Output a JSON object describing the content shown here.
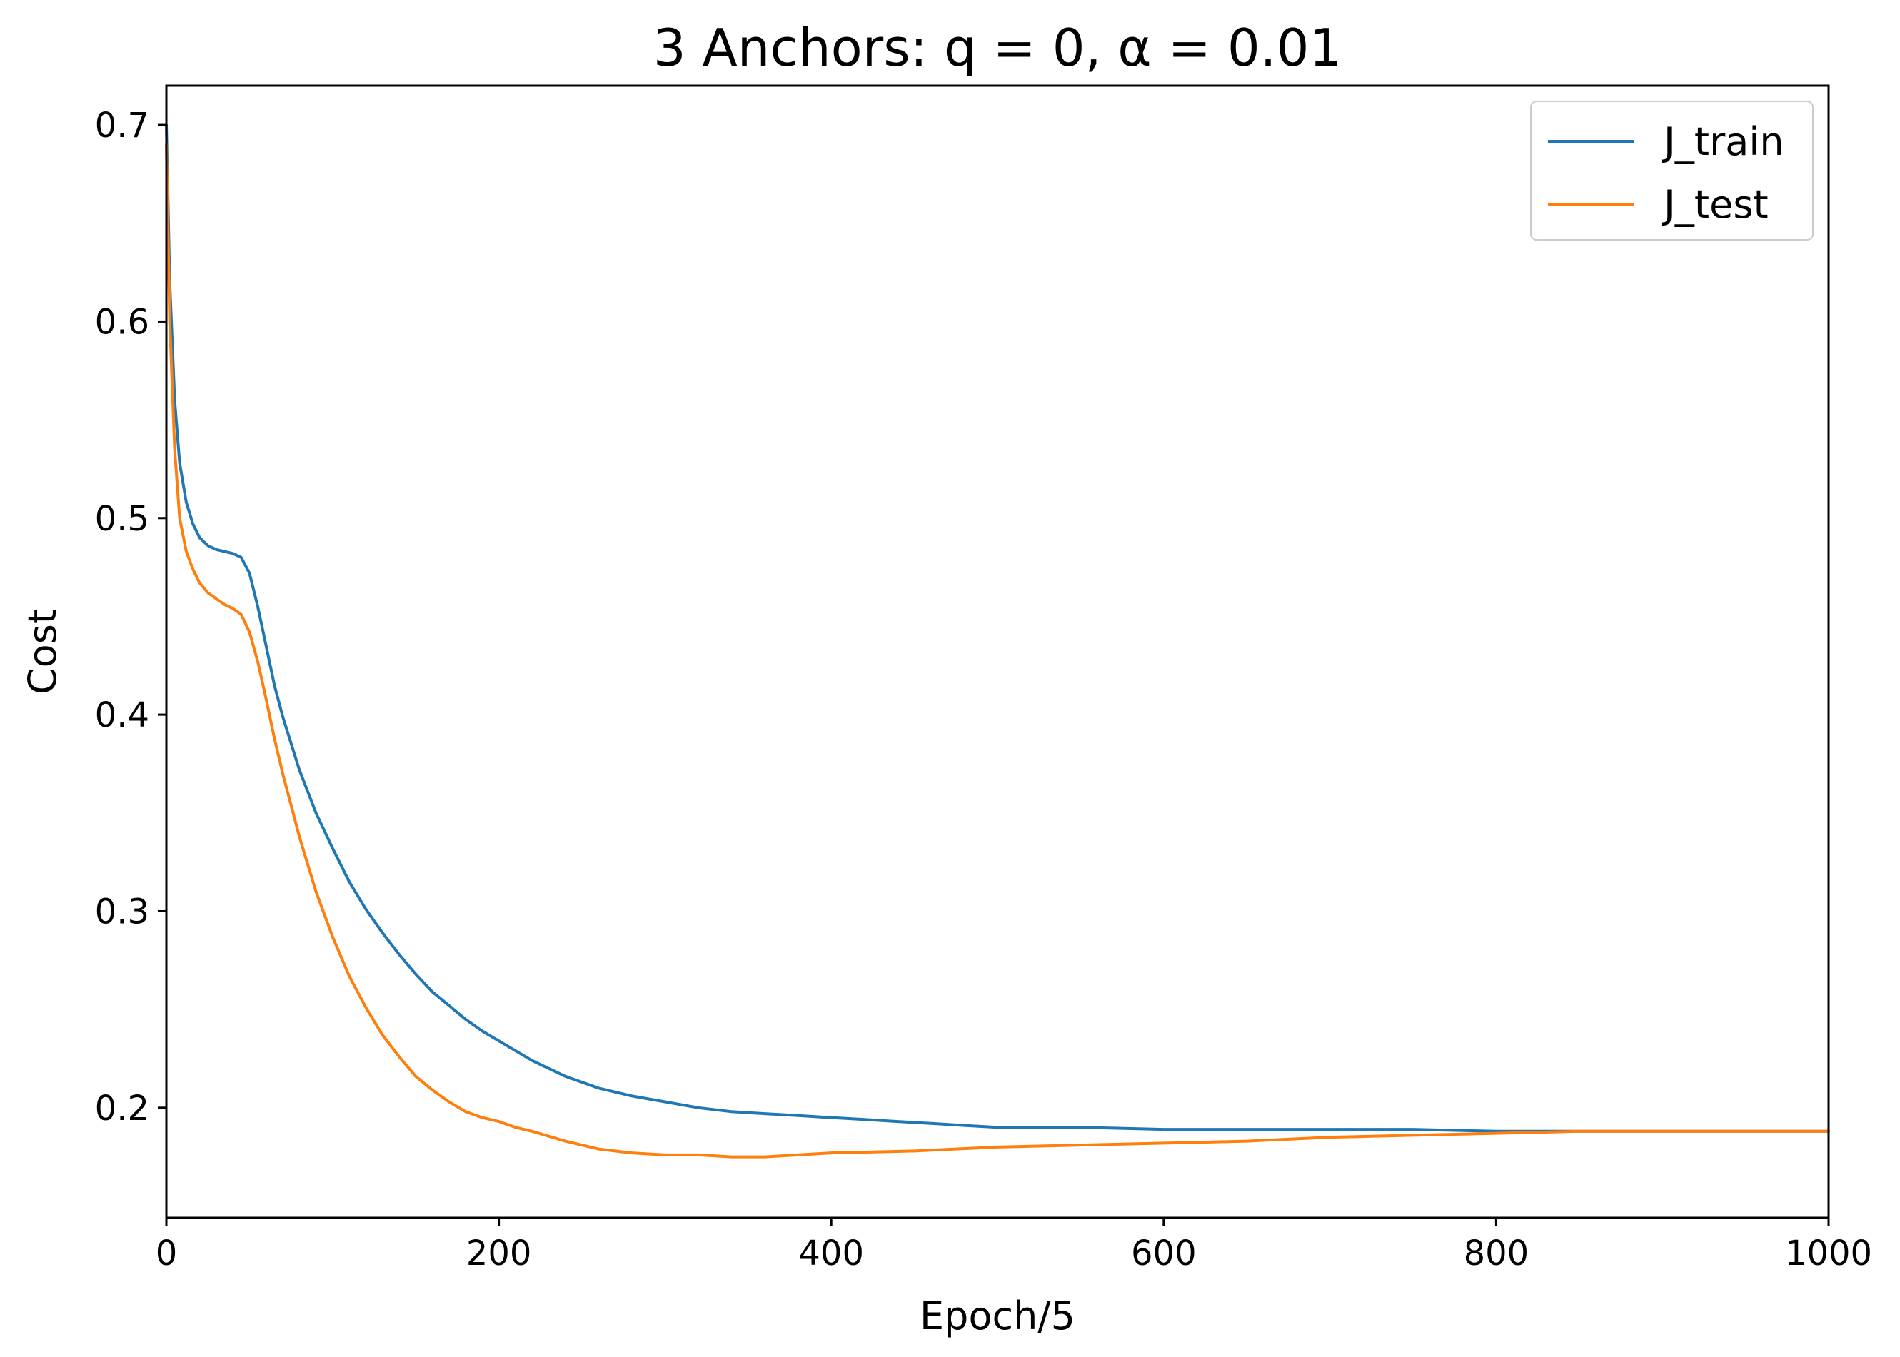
{
  "chart_data": {
    "type": "line",
    "title": "3 Anchors: q = 0, α = 0.01",
    "xlabel": "Epoch/5",
    "ylabel": "Cost",
    "xlim": [
      0,
      1000
    ],
    "ylim": [
      0.144,
      0.72
    ],
    "xticks": [
      0,
      200,
      400,
      600,
      800,
      1000
    ],
    "xtick_labels": [
      "0",
      "200",
      "400",
      "600",
      "800",
      "1000"
    ],
    "yticks": [
      0.2,
      0.3,
      0.4,
      0.5,
      0.6,
      0.7
    ],
    "ytick_labels": [
      "0.2",
      "0.3",
      "0.4",
      "0.5",
      "0.6",
      "0.7"
    ],
    "grid": false,
    "legend": {
      "placement": "upper right"
    },
    "series": [
      {
        "name": "J_train",
        "color": "#1f77b4",
        "x": [
          0,
          2,
          5,
          8,
          12,
          16,
          20,
          25,
          30,
          35,
          40,
          45,
          50,
          55,
          60,
          65,
          70,
          80,
          90,
          100,
          110,
          120,
          130,
          140,
          150,
          160,
          170,
          180,
          190,
          200,
          220,
          240,
          260,
          280,
          300,
          320,
          340,
          360,
          380,
          400,
          420,
          440,
          460,
          480,
          500,
          550,
          600,
          650,
          700,
          750,
          800,
          850,
          900,
          950,
          1000
        ],
        "y": [
          0.7,
          0.62,
          0.56,
          0.528,
          0.508,
          0.497,
          0.49,
          0.486,
          0.484,
          0.483,
          0.482,
          0.48,
          0.472,
          0.455,
          0.435,
          0.415,
          0.399,
          0.372,
          0.35,
          0.332,
          0.315,
          0.301,
          0.289,
          0.278,
          0.268,
          0.259,
          0.252,
          0.245,
          0.239,
          0.234,
          0.224,
          0.216,
          0.21,
          0.206,
          0.203,
          0.2,
          0.198,
          0.197,
          0.196,
          0.195,
          0.194,
          0.193,
          0.192,
          0.191,
          0.19,
          0.19,
          0.189,
          0.189,
          0.189,
          0.189,
          0.188,
          0.188,
          0.188,
          0.188,
          0.188
        ]
      },
      {
        "name": "J_test",
        "color": "#ff7f0e",
        "x": [
          0,
          2,
          5,
          8,
          12,
          16,
          20,
          25,
          30,
          35,
          40,
          45,
          50,
          55,
          60,
          65,
          70,
          80,
          90,
          100,
          110,
          120,
          130,
          140,
          150,
          160,
          170,
          180,
          190,
          200,
          210,
          220,
          240,
          260,
          280,
          300,
          320,
          340,
          360,
          380,
          400,
          450,
          500,
          550,
          600,
          650,
          700,
          750,
          800,
          850,
          900,
          950,
          1000
        ],
        "y": [
          0.69,
          0.6,
          0.535,
          0.5,
          0.483,
          0.474,
          0.467,
          0.462,
          0.459,
          0.456,
          0.454,
          0.451,
          0.442,
          0.427,
          0.408,
          0.388,
          0.37,
          0.338,
          0.31,
          0.287,
          0.267,
          0.251,
          0.237,
          0.226,
          0.216,
          0.209,
          0.203,
          0.198,
          0.195,
          0.193,
          0.19,
          0.188,
          0.183,
          0.179,
          0.177,
          0.176,
          0.176,
          0.175,
          0.175,
          0.176,
          0.177,
          0.178,
          0.18,
          0.181,
          0.182,
          0.183,
          0.185,
          0.186,
          0.187,
          0.188,
          0.188,
          0.188,
          0.188
        ]
      }
    ]
  }
}
